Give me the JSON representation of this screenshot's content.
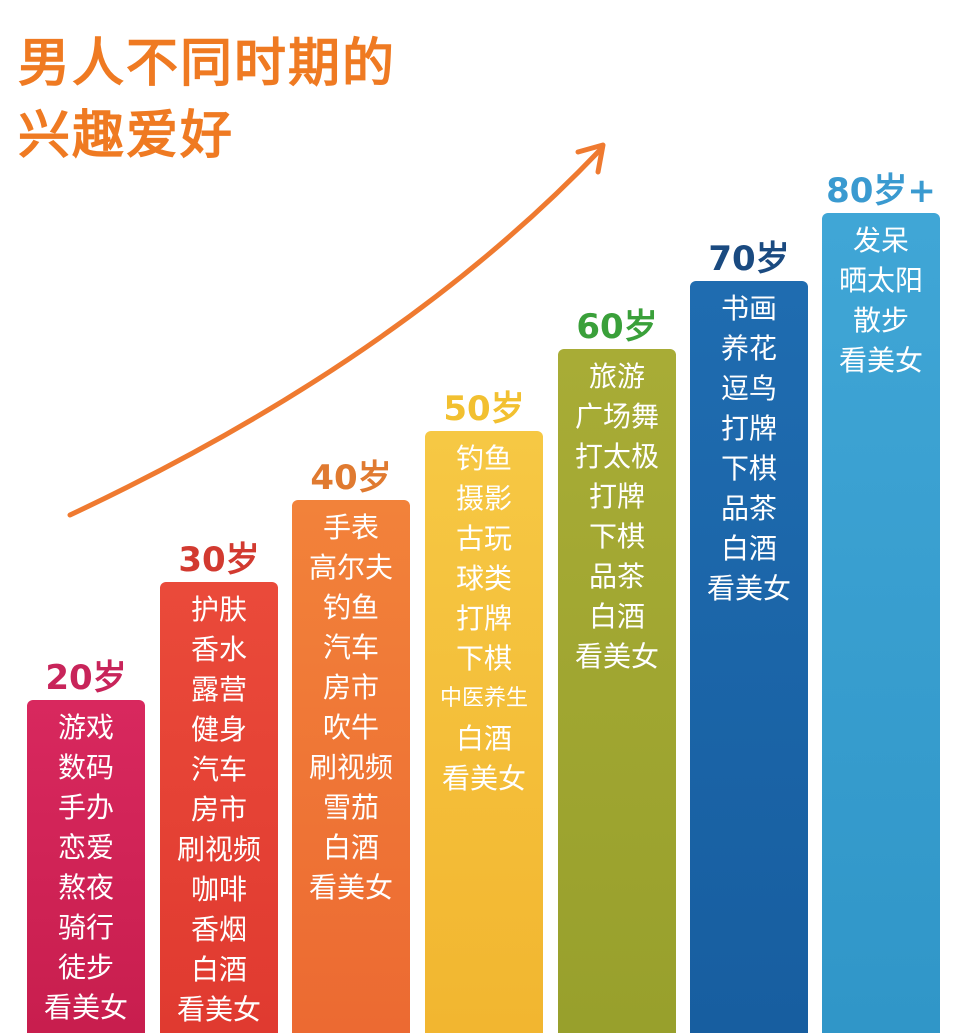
{
  "title": {
    "line1": "男人不同时期的",
    "line2": "兴趣爱好"
  },
  "columns": [
    {
      "age": "20岁",
      "items": [
        "游戏",
        "数码",
        "手办",
        "恋爱",
        "熬夜",
        "骑行",
        "徒步",
        "看美女"
      ]
    },
    {
      "age": "30岁",
      "items": [
        "护肤",
        "香水",
        "露营",
        "健身",
        "汽车",
        "房市",
        "刷视频",
        "咖啡",
        "香烟",
        "白酒",
        "看美女"
      ]
    },
    {
      "age": "40岁",
      "items": [
        "手表",
        "高尔夫",
        "钓鱼",
        "汽车",
        "房市",
        "吹牛",
        "刷视频",
        "雪茄",
        "白酒",
        "看美女"
      ]
    },
    {
      "age": "50岁",
      "items": [
        "钓鱼",
        "摄影",
        "古玩",
        "球类",
        "打牌",
        "下棋",
        "中医养生",
        "白酒",
        "看美女"
      ]
    },
    {
      "age": "60岁",
      "items": [
        "旅游",
        "广场舞",
        "打太极",
        "打牌",
        "下棋",
        "品茶",
        "白酒",
        "看美女"
      ]
    },
    {
      "age": "70岁",
      "items": [
        "书画",
        "养花",
        "逗鸟",
        "打牌",
        "下棋",
        "品茶",
        "白酒",
        "看美女"
      ]
    },
    {
      "age": "80岁+",
      "items": [
        "发呆",
        "晒太阳",
        "散步",
        "看美女"
      ]
    }
  ]
}
